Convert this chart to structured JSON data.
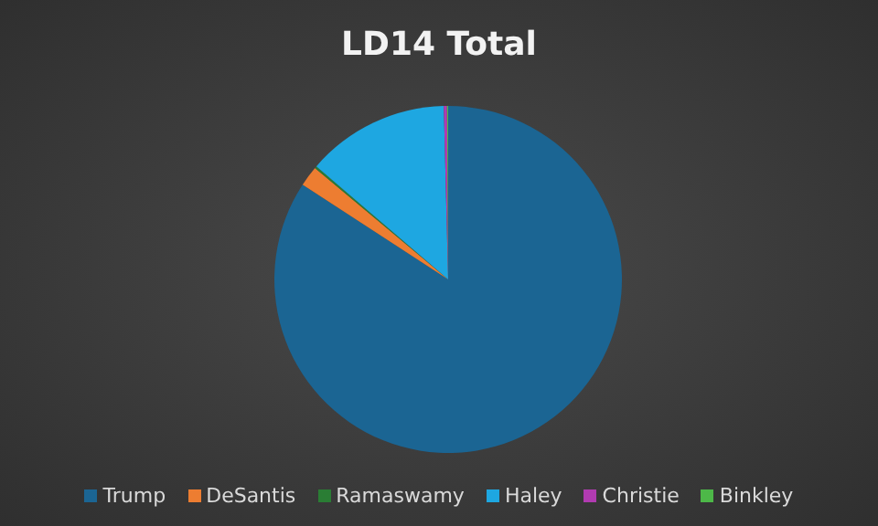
{
  "chart_data": {
    "type": "pie",
    "title": "LD14 Total",
    "categories": [
      "Trump",
      "DeSantis",
      "Ramaswamy",
      "Haley",
      "Christie",
      "Binkley"
    ],
    "values": [
      84.2,
      1.9,
      0.2,
      13.3,
      0.3,
      0.1
    ],
    "colors": [
      "#1b6593",
      "#ed7d31",
      "#2a7d34",
      "#1ea7e1",
      "#b13bb1",
      "#4db848"
    ],
    "legend": "bottom"
  }
}
